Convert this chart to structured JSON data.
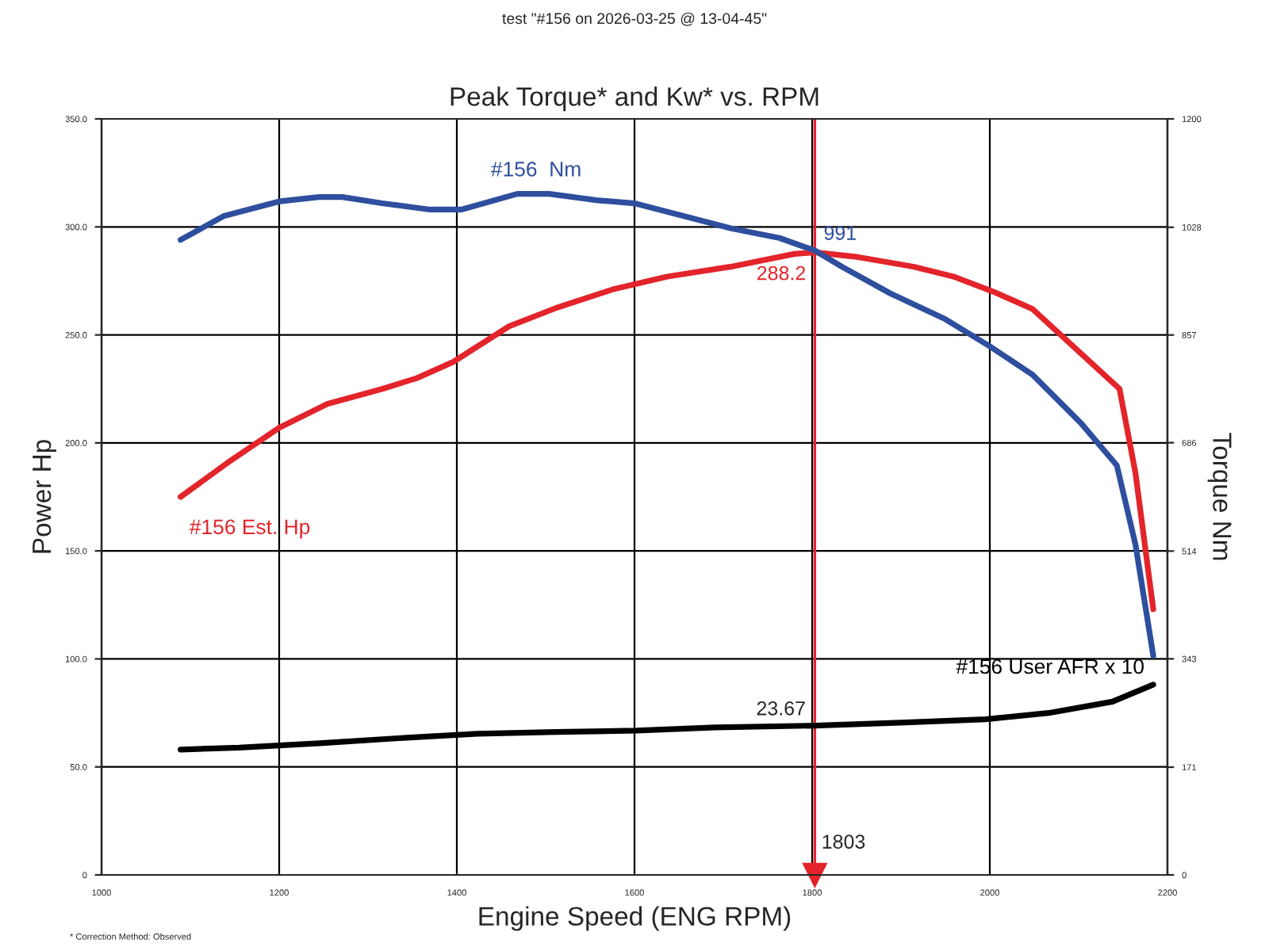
{
  "chart_data": {
    "type": "line",
    "title": "Peak Torque* and Kw* vs. RPM",
    "subtitle": "test \"#156 on 2026-03-25 @ 13-04-45\"",
    "xlabel": "Engine Speed (ENG RPM)",
    "ylabel": "Power Hp",
    "y2label": "Torque Nm",
    "xlim": [
      1000,
      2200
    ],
    "xticks": [
      1000,
      1200,
      1400,
      1600,
      1800,
      2000,
      2200
    ],
    "ylim": [
      0,
      350
    ],
    "yticks": [
      0,
      {
        "value": 50,
        "label": "50.0"
      },
      {
        "value": 100,
        "label": "100.0"
      },
      {
        "value": 150,
        "label": "150.0"
      },
      {
        "value": 200,
        "label": "200.0"
      },
      {
        "value": 250,
        "label": "250.0"
      },
      {
        "value": 300,
        "label": "300.0"
      },
      {
        "value": 350,
        "label": "350.0"
      }
    ],
    "y2lim": [
      0,
      1200
    ],
    "y2ticks": [
      0,
      171,
      343,
      514,
      686,
      857,
      1028,
      1200
    ],
    "grid": true,
    "line_style": "solid",
    "marker": "none",
    "series": [
      {
        "name": "#156  Nm",
        "color": "#2e4e9e",
        "axis": "y2",
        "x": [
          1089,
          1138,
          1200,
          1245,
          1271,
          1316,
          1370,
          1405,
          1468,
          1504,
          1557,
          1600,
          1655,
          1709,
          1763,
          1803,
          1834,
          1888,
          1950,
          2000,
          2048,
          2102,
          2143,
          2164,
          2184
        ],
        "values": [
          1008,
          1046,
          1069,
          1076,
          1076,
          1066,
          1056,
          1056,
          1081,
          1081,
          1071,
          1066,
          1046,
          1026,
          1011,
          991,
          965,
          923,
          882,
          839,
          794,
          718,
          650,
          524,
          348
        ],
        "value_labels": [
          null,
          null,
          null,
          null,
          null,
          null,
          null,
          null,
          null,
          null,
          null,
          null,
          null,
          null,
          null,
          "991",
          null,
          null,
          null,
          null,
          null,
          null,
          null,
          null,
          null
        ]
      },
      {
        "name": "#156 Est. Hp",
        "color": "#e3242b",
        "x": [
          1089,
          1146,
          1200,
          1254,
          1316,
          1355,
          1396,
          1459,
          1512,
          1575,
          1637,
          1709,
          1780,
          1803,
          1852,
          1914,
          1959,
          2004,
          2048,
          2146,
          2164,
          2184
        ],
        "values": [
          175,
          192,
          207,
          218,
          225,
          230,
          237.5,
          254,
          262.5,
          271,
          277,
          281.6,
          287.5,
          288.2,
          286,
          281.6,
          277,
          270,
          262,
          225,
          186,
          123
        ],
        "value_labels": [
          null,
          null,
          null,
          null,
          null,
          null,
          null,
          null,
          null,
          null,
          null,
          null,
          null,
          "288.2",
          null,
          null,
          null,
          null,
          null,
          null,
          null,
          null
        ]
      },
      {
        "name": "#156 User AFR x 10",
        "color": "#000000",
        "axis": "y2",
        "x": [
          1089,
          1155,
          1245,
          1334,
          1423,
          1512,
          1602,
          1691,
          1803,
          1905,
          1995,
          2066,
          2138,
          2184
        ],
        "values": [
          199,
          202,
          209,
          217,
          224,
          227,
          229,
          234,
          237,
          242,
          247,
          257,
          275,
          302
        ]
      }
    ],
    "ref_lines": [
      {
        "axis": "x",
        "value": 1803,
        "label": "1803",
        "color": "#e3242b"
      }
    ],
    "annotations": [
      "23.67",
      "* Correction Method: Observed"
    ]
  }
}
